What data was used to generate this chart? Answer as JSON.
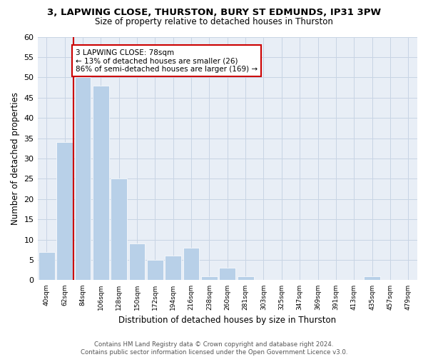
{
  "title1": "3, LAPWING CLOSE, THURSTON, BURY ST EDMUNDS, IP31 3PW",
  "title2": "Size of property relative to detached houses in Thurston",
  "xlabel": "Distribution of detached houses by size in Thurston",
  "ylabel": "Number of detached properties",
  "categories": [
    "40sqm",
    "62sqm",
    "84sqm",
    "106sqm",
    "128sqm",
    "150sqm",
    "172sqm",
    "194sqm",
    "216sqm",
    "238sqm",
    "260sqm",
    "281sqm",
    "303sqm",
    "325sqm",
    "347sqm",
    "369sqm",
    "391sqm",
    "413sqm",
    "435sqm",
    "457sqm",
    "479sqm"
  ],
  "values": [
    7,
    34,
    50,
    48,
    25,
    9,
    5,
    6,
    8,
    1,
    3,
    1,
    0,
    0,
    0,
    0,
    0,
    0,
    1,
    0,
    0
  ],
  "bar_color": "#b8d0e8",
  "bar_edge_color": "#b8d0e8",
  "grid_color": "#c8d4e4",
  "bg_color": "#e8eef6",
  "ylim": [
    0,
    60
  ],
  "yticks": [
    0,
    5,
    10,
    15,
    20,
    25,
    30,
    35,
    40,
    45,
    50,
    55,
    60
  ],
  "annotation_title": "3 LAPWING CLOSE: 78sqm",
  "annotation_line1": "← 13% of detached houses are smaller (26)",
  "annotation_line2": "86% of semi-detached houses are larger (169) →",
  "annotation_box_color": "#ffffff",
  "annotation_border_color": "#cc0000",
  "vline_color": "#cc0000",
  "footer1": "Contains HM Land Registry data © Crown copyright and database right 2024.",
  "footer2": "Contains public sector information licensed under the Open Government Licence v3.0."
}
